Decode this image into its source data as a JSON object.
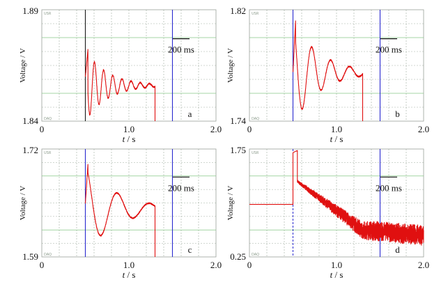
{
  "chart_data": [
    {
      "type": "line",
      "panel_label": "a",
      "ylabel": "Voltage / V",
      "xlabel_var": "t",
      "xlabel_unit": "/ s",
      "xlim": [
        0,
        2.0
      ],
      "ylim": [
        1.84,
        1.89
      ],
      "x_ticks": [
        "0",
        "1.0",
        "2.0"
      ],
      "y_ticks": [
        "1.84",
        "1.89"
      ],
      "scale_bar": "200 ms",
      "cursor_times": [
        0.5,
        1.5
      ],
      "signal": {
        "step_time": 0.5,
        "baseline": 1.86,
        "end_time": 1.3,
        "drop_to": 1.84,
        "peak": 1.878,
        "oscillation": "damped ringing, ~8 cycles, settling near 1.856"
      }
    },
    {
      "type": "line",
      "panel_label": "b",
      "ylabel": "Voltage / V",
      "xlabel_var": "t",
      "xlabel_unit": "/ s",
      "xlim": [
        0,
        2.0
      ],
      "ylim": [
        1.74,
        1.82
      ],
      "x_ticks": [
        "0",
        "1.0",
        "2.0"
      ],
      "y_ticks": [
        "1.74",
        "1.82"
      ],
      "scale_bar": "200 ms",
      "cursor_times": [
        0.5,
        1.5
      ],
      "signal": {
        "step_time": 0.5,
        "baseline": 1.775,
        "end_time": 1.3,
        "drop_to": 1.74,
        "peak": 1.805,
        "oscillation": "damped oscillation, ~4 cycles, settling near 1.775"
      }
    },
    {
      "type": "line",
      "panel_label": "c",
      "ylabel": "Voltage / V",
      "xlabel_var": "t",
      "xlabel_unit": "/ s",
      "xlim": [
        0,
        2.0
      ],
      "ylim": [
        1.59,
        1.72
      ],
      "x_ticks": [
        "0",
        "1.0",
        "2.0"
      ],
      "y_ticks": [
        "1.59",
        "1.72"
      ],
      "scale_bar": "200 ms",
      "cursor_times": [
        0.5,
        1.5
      ],
      "signal": {
        "step_time": 0.5,
        "baseline": 1.654,
        "end_time": 1.3,
        "drop_to": 1.59,
        "peak": 1.701,
        "oscillation": "slow damped oscillation, ~3 cycles, settling near 1.648"
      }
    },
    {
      "type": "line",
      "panel_label": "d",
      "ylabel": "Voltage / V",
      "xlabel_var": "t",
      "xlabel_unit": "/ s",
      "xlim": [
        0,
        2.0
      ],
      "ylim": [
        0.25,
        1.75
      ],
      "x_ticks": [
        "0",
        "1.0",
        "2.0"
      ],
      "y_ticks": [
        "0.25",
        "1.75"
      ],
      "scale_bar": "200 ms",
      "cursor_times": [
        0.5,
        1.5
      ],
      "signal": {
        "pre_level": 0.98,
        "step_time": 0.5,
        "step_high": 1.7,
        "step_high_end": 0.55,
        "decay_start": 1.3,
        "decay_end_mean": 0.55,
        "noise_amplitude_end": 0.12
      }
    }
  ]
}
